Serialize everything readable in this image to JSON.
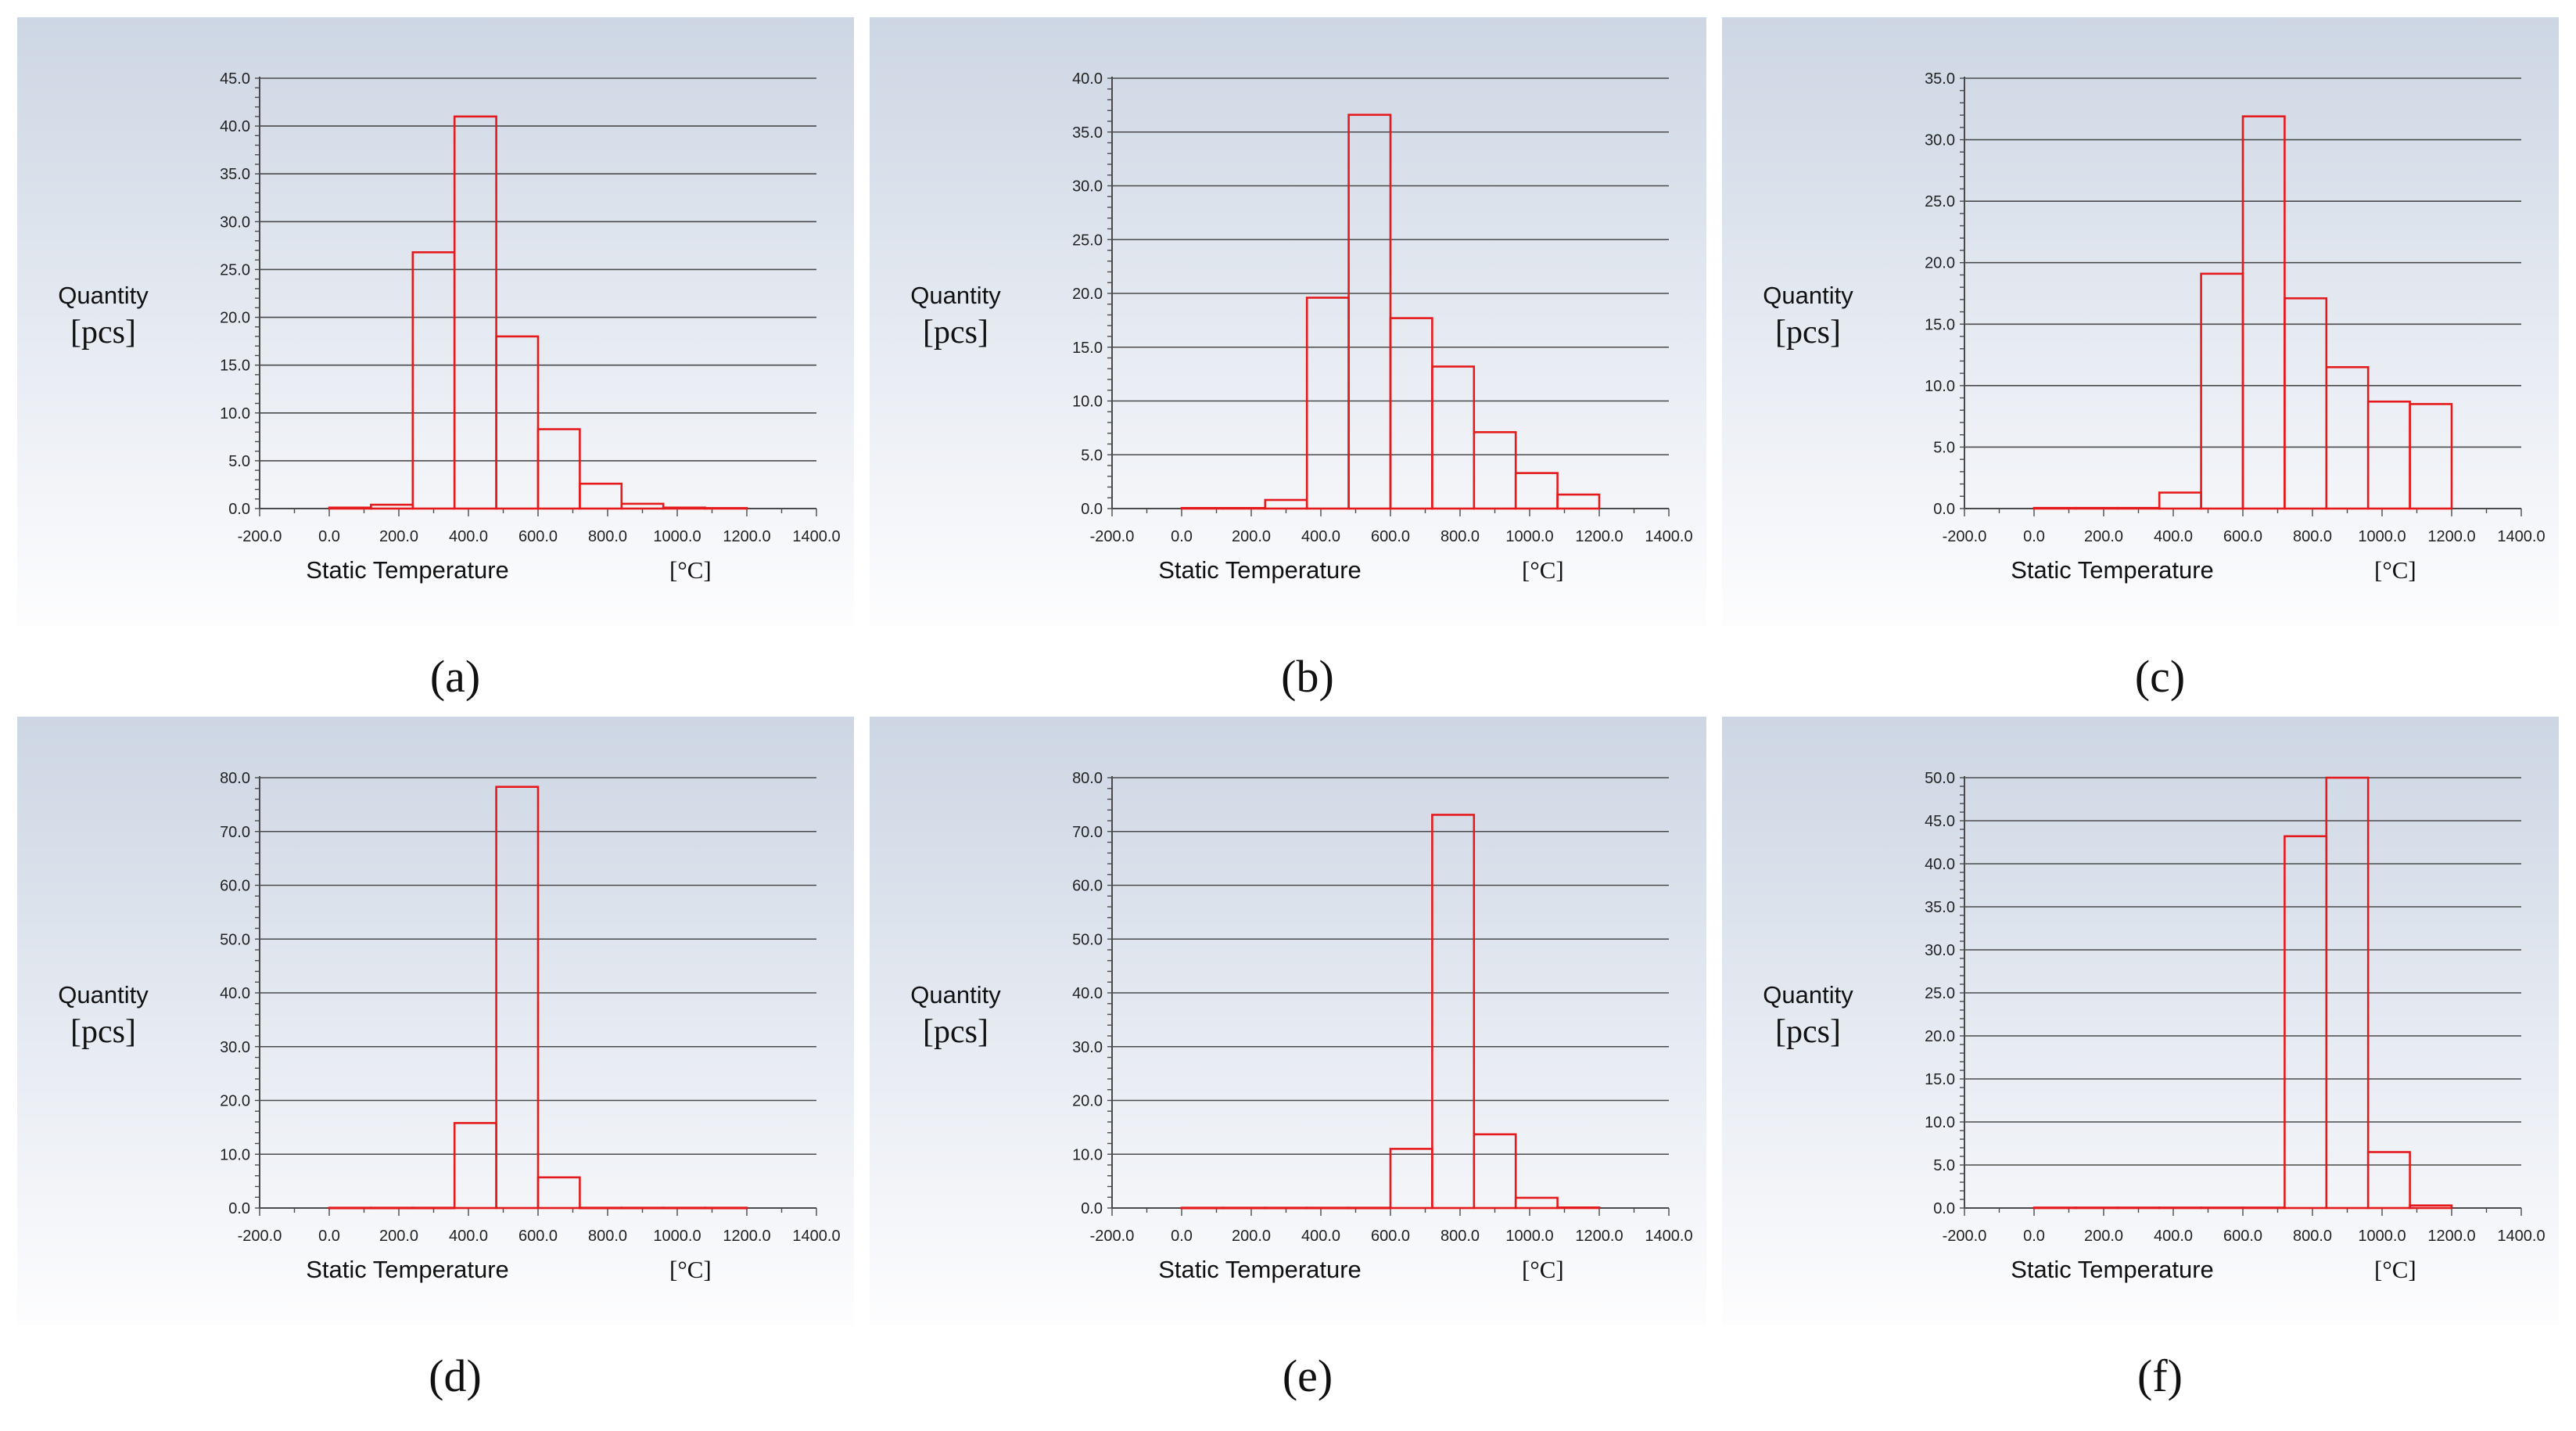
{
  "colors": {
    "bar_stroke": "#e41a1c",
    "grid": "#4a4a4a",
    "panel_top": "#cdd6e4",
    "panel_bottom": "#fdfdfe"
  },
  "chart_data": [
    {
      "id": "a",
      "type": "bar",
      "caption": "(a)",
      "ylabel": "Quantity",
      "yunit": "[pcs]",
      "xlabel": "Static Temperature",
      "xunit": "[°C]",
      "xlim": [
        -200,
        1400
      ],
      "ylim": [
        0,
        45
      ],
      "xticks": [
        -200,
        0,
        200,
        400,
        600,
        800,
        1000,
        1200,
        1400
      ],
      "xtick_labels": [
        "-200.0",
        "0.0",
        "200.0",
        "400.0",
        "600.0",
        "800.0",
        "1000.0",
        "1200.0",
        "1400.0"
      ],
      "yticks": [
        0,
        5,
        10,
        15,
        20,
        25,
        30,
        35,
        40,
        45
      ],
      "ytick_labels": [
        "0.0",
        "5.0",
        "10.0",
        "15.0",
        "20.0",
        "25.0",
        "30.0",
        "35.0",
        "40.0",
        "45.0"
      ],
      "bin_edges": [
        0,
        120,
        240,
        360,
        480,
        600,
        720,
        840,
        960,
        1080,
        1200
      ],
      "values": [
        0.1,
        0.4,
        26.8,
        41.0,
        18.0,
        8.3,
        2.6,
        0.5,
        0.1,
        0.05
      ]
    },
    {
      "id": "b",
      "type": "bar",
      "caption": "(b)",
      "ylabel": "Quantity",
      "yunit": "[pcs]",
      "xlabel": "Static Temperature",
      "xunit": "[°C]",
      "xlim": [
        -200,
        1400
      ],
      "ylim": [
        0,
        40
      ],
      "xticks": [
        -200,
        0,
        200,
        400,
        600,
        800,
        1000,
        1200,
        1400
      ],
      "xtick_labels": [
        "-200.0",
        "0.0",
        "200.0",
        "400.0",
        "600.0",
        "800.0",
        "1000.0",
        "1200.0",
        "1400.0"
      ],
      "yticks": [
        0,
        5,
        10,
        15,
        20,
        25,
        30,
        35,
        40
      ],
      "ytick_labels": [
        "0.0",
        "5.0",
        "10.0",
        "15.0",
        "20.0",
        "25.0",
        "30.0",
        "35.0",
        "40.0"
      ],
      "bin_edges": [
        0,
        120,
        240,
        360,
        480,
        600,
        720,
        840,
        960,
        1080,
        1200
      ],
      "values": [
        0.05,
        0.05,
        0.8,
        19.6,
        36.6,
        17.7,
        13.2,
        7.1,
        3.3,
        1.3
      ]
    },
    {
      "id": "c",
      "type": "bar",
      "caption": "(c)",
      "ylabel": "Quantity",
      "yunit": "[pcs]",
      "xlabel": "Static Temperature",
      "xunit": "[°C]",
      "xlim": [
        -200,
        1400
      ],
      "ylim": [
        0,
        35
      ],
      "xticks": [
        -200,
        0,
        200,
        400,
        600,
        800,
        1000,
        1200,
        1400
      ],
      "xtick_labels": [
        "-200.0",
        "0.0",
        "200.0",
        "400.0",
        "600.0",
        "800.0",
        "1000.0",
        "1200.0",
        "1400.0"
      ],
      "yticks": [
        0,
        5,
        10,
        15,
        20,
        25,
        30,
        35
      ],
      "ytick_labels": [
        "0.0",
        "5.0",
        "10.0",
        "15.0",
        "20.0",
        "25.0",
        "30.0",
        "35.0"
      ],
      "bin_edges": [
        0,
        120,
        240,
        360,
        480,
        600,
        720,
        840,
        960,
        1080,
        1200
      ],
      "values": [
        0.05,
        0.05,
        0.05,
        1.3,
        19.1,
        31.9,
        17.1,
        11.5,
        8.7,
        8.5
      ]
    },
    {
      "id": "d",
      "type": "bar",
      "caption": "(d)",
      "ylabel": "Quantity",
      "yunit": "[pcs]",
      "xlabel": "Static Temperature",
      "xunit": "[°C]",
      "xlim": [
        -200,
        1400
      ],
      "ylim": [
        0,
        80
      ],
      "xticks": [
        -200,
        0,
        200,
        400,
        600,
        800,
        1000,
        1200,
        1400
      ],
      "xtick_labels": [
        "-200.0",
        "0.0",
        "200.0",
        "400.0",
        "600.0",
        "800.0",
        "1000.0",
        "1200.0",
        "1400.0"
      ],
      "yticks": [
        0,
        10,
        20,
        30,
        40,
        50,
        60,
        70,
        80
      ],
      "ytick_labels": [
        "0.0",
        "10.0",
        "20.0",
        "30.0",
        "40.0",
        "50.0",
        "60.0",
        "70.0",
        "80.0"
      ],
      "bin_edges": [
        0,
        120,
        240,
        360,
        480,
        600,
        720,
        840,
        960,
        1080,
        1200
      ],
      "values": [
        0.05,
        0.05,
        0.05,
        15.8,
        78.3,
        5.7,
        0.05,
        0.05,
        0.05,
        0.05
      ]
    },
    {
      "id": "e",
      "type": "bar",
      "caption": "(e)",
      "ylabel": "Quantity",
      "yunit": "[pcs]",
      "xlabel": "Static Temperature",
      "xunit": "[°C]",
      "xlim": [
        -200,
        1400
      ],
      "ylim": [
        0,
        80
      ],
      "xticks": [
        -200,
        0,
        200,
        400,
        600,
        800,
        1000,
        1200,
        1400
      ],
      "xtick_labels": [
        "-200.0",
        "0.0",
        "200.0",
        "400.0",
        "600.0",
        "800.0",
        "1000.0",
        "1200.0",
        "1400.0"
      ],
      "yticks": [
        0,
        10,
        20,
        30,
        40,
        50,
        60,
        70,
        80
      ],
      "ytick_labels": [
        "0.0",
        "10.0",
        "20.0",
        "30.0",
        "40.0",
        "50.0",
        "60.0",
        "70.0",
        "80.0"
      ],
      "bin_edges": [
        0,
        120,
        240,
        360,
        480,
        600,
        720,
        840,
        960,
        1080,
        1200
      ],
      "values": [
        0.05,
        0.05,
        0.05,
        0.05,
        0.05,
        11.0,
        73.1,
        13.7,
        1.9,
        0.1
      ]
    },
    {
      "id": "f",
      "type": "bar",
      "caption": "(f)",
      "ylabel": "Quantity",
      "yunit": "[pcs]",
      "xlabel": "Static Temperature",
      "xunit": "[°C]",
      "xlim": [
        -200,
        1400
      ],
      "ylim": [
        0,
        50
      ],
      "xticks": [
        -200,
        0,
        200,
        400,
        600,
        800,
        1000,
        1200,
        1400
      ],
      "xtick_labels": [
        "-200.0",
        "0.0",
        "200.0",
        "400.0",
        "600.0",
        "800.0",
        "1000.0",
        "1200.0",
        "1400.0"
      ],
      "yticks": [
        0,
        5,
        10,
        15,
        20,
        25,
        30,
        35,
        40,
        45,
        50
      ],
      "ytick_labels": [
        "0.0",
        "5.0",
        "10.0",
        "15.0",
        "20.0",
        "25.0",
        "30.0",
        "35.0",
        "40.0",
        "45.0",
        "50.0"
      ],
      "bin_edges": [
        0,
        120,
        240,
        360,
        480,
        600,
        720,
        840,
        960,
        1080,
        1200
      ],
      "values": [
        0.05,
        0.05,
        0.05,
        0.05,
        0.05,
        0.05,
        43.2,
        50.0,
        6.5,
        0.3
      ]
    }
  ]
}
